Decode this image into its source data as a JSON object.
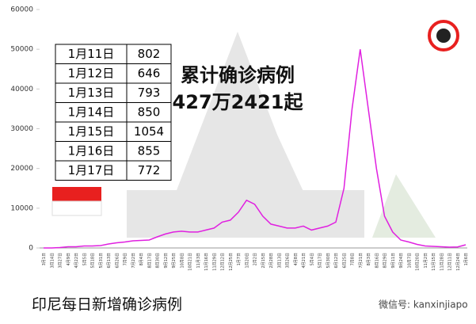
{
  "chart_data": {
    "type": "line",
    "title": "累计确诊病例",
    "subtitle": "427万2421起",
    "caption": "印尼每日新增确诊病例",
    "watermark": "微信号: kanxinjiapo",
    "categories": [
      "3月1日",
      "3月14日",
      "3月27日",
      "4月9日",
      "4月22日",
      "5月5日",
      "5月18日",
      "5月31日",
      "6月13日",
      "6月26日",
      "7月9日",
      "7月22日",
      "8月4日",
      "8月17日",
      "8月30日",
      "9月12日",
      "9月25日",
      "10月8日",
      "10月21日",
      "11月3日",
      "11月16日",
      "11月29日",
      "12月12日",
      "12月25日",
      "1月7日",
      "1月20日",
      "2月2日",
      "2月15日",
      "2月28日",
      "3月13日",
      "3月26日",
      "4月8日",
      "4月21日",
      "5月4日",
      "5月17日",
      "5月30日",
      "6月12日",
      "6月25日",
      "7月8日",
      "7月21日",
      "8月3日",
      "8月16日",
      "8月29日",
      "9月11日",
      "9月24日",
      "10月7日",
      "10月20日",
      "11月2日",
      "11月15日",
      "11月28日",
      "12月11日",
      "12月24日",
      "1月6日"
    ],
    "series": [
      {
        "color": "#e020e0",
        "values": [
          0,
          0,
          100,
          300,
          300,
          500,
          500,
          600,
          1000,
          1300,
          1500,
          1800,
          1900,
          2000,
          2800,
          3500,
          4000,
          4200,
          4000,
          4000,
          4500,
          5000,
          6500,
          7000,
          9000,
          12000,
          11000,
          8000,
          6000,
          5500,
          5000,
          5000,
          5500,
          4500,
          5000,
          5500,
          6500,
          15000,
          35000,
          50000,
          35000,
          20000,
          8000,
          4000,
          2000,
          1500,
          900,
          500,
          400,
          300,
          200,
          250,
          800
        ]
      }
    ],
    "ylim": [
      0,
      60000
    ],
    "yticks": [
      0,
      10000,
      20000,
      30000,
      40000,
      50000,
      60000
    ],
    "table": {
      "rows": [
        [
          "1月11日",
          802
        ],
        [
          "1月12日",
          646
        ],
        [
          "1月13日",
          793
        ],
        [
          "1月14日",
          850
        ],
        [
          "1月15日",
          1054
        ],
        [
          "1月16日",
          855
        ],
        [
          "1月17日",
          772
        ]
      ]
    }
  }
}
